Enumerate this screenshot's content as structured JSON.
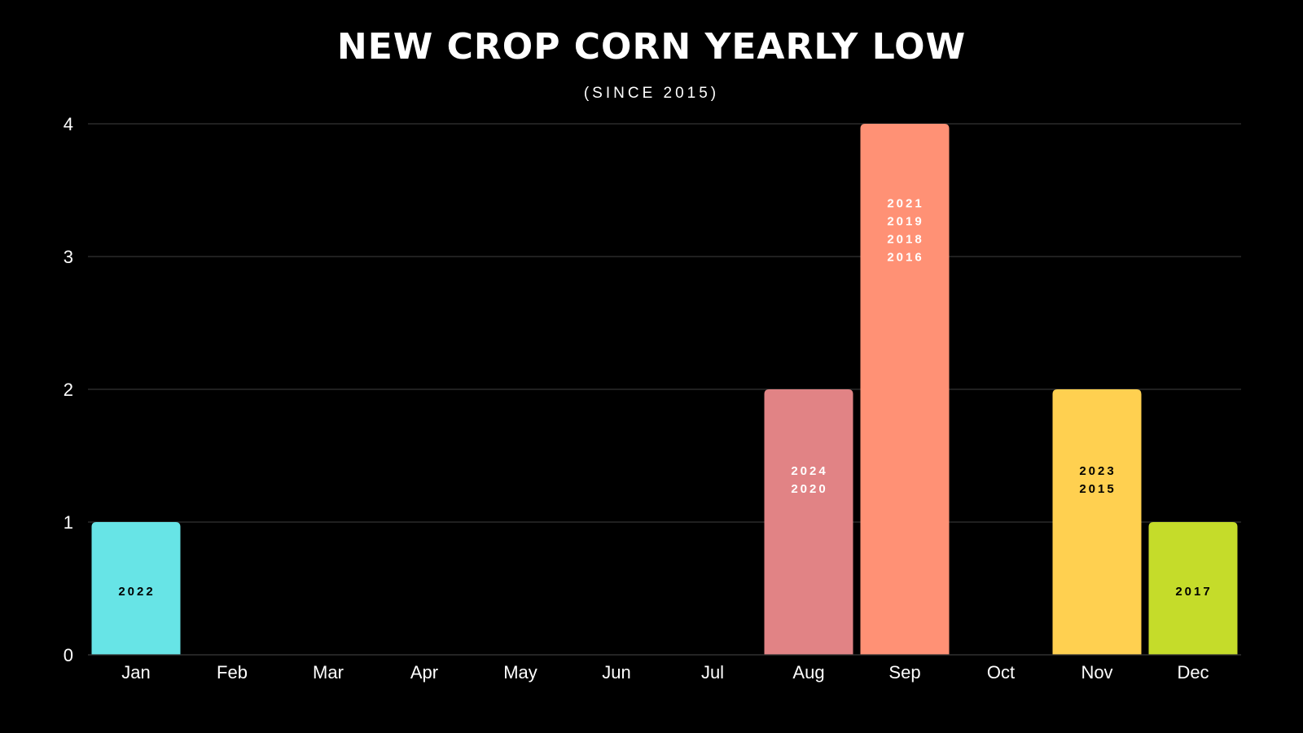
{
  "chart_data": {
    "type": "bar",
    "title": "NEW CROP CORN YEARLY LOW",
    "subtitle": "(SINCE 2015)",
    "xlabel": "",
    "ylabel": "",
    "categories": [
      "Jan",
      "Feb",
      "Mar",
      "Apr",
      "May",
      "Jun",
      "Jul",
      "Aug",
      "Sep",
      "Oct",
      "Nov",
      "Dec"
    ],
    "values": [
      1,
      0,
      0,
      0,
      0,
      0,
      0,
      2,
      4,
      0,
      2,
      1
    ],
    "bar_labels": [
      [
        "2022"
      ],
      [],
      [],
      [],
      [],
      [],
      [],
      [
        "2024",
        "2020"
      ],
      [
        "2021",
        "2019",
        "2018",
        "2016"
      ],
      [],
      [
        "2023",
        "2015"
      ],
      [
        "2017"
      ]
    ],
    "bar_colors": [
      "#67e4e6",
      "",
      "",
      "",
      "",
      "",
      "",
      "#e18385",
      "#ff9175",
      "",
      "#ffd050",
      "#c5dc2a"
    ],
    "label_colors": [
      "#000000",
      "",
      "",
      "",
      "",
      "",
      "",
      "#ffffff",
      "#ffffff",
      "",
      "#000000",
      "#000000"
    ],
    "y_ticks": [
      "0",
      "1",
      "2",
      "3",
      "4"
    ],
    "ylim": [
      0,
      4
    ],
    "grid": true,
    "legend": "none",
    "colors": {
      "background": "#000000",
      "text": "#ffffff",
      "grid": "#333333"
    }
  }
}
